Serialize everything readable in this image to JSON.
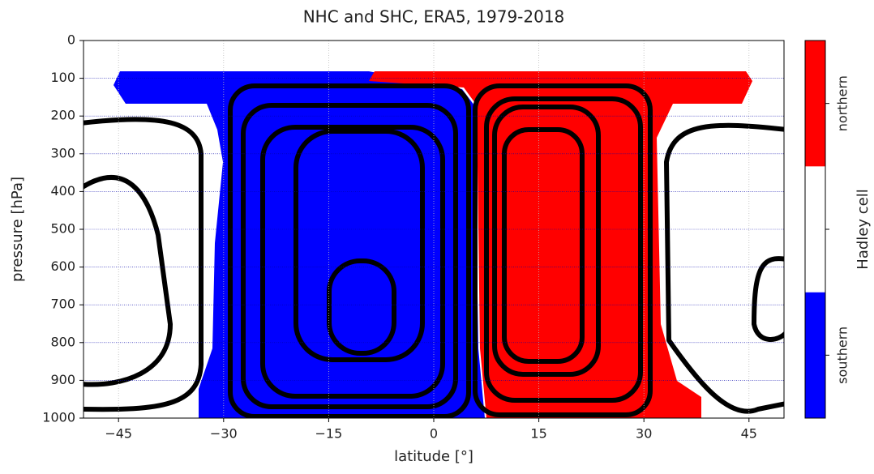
{
  "chart_data": {
    "type": "contour",
    "title": "NHC and SHC, ERA5, 1979-2018",
    "x_label": "latitude [°]",
    "y_label": "pressure [hPa]",
    "xlim": [
      -50,
      50
    ],
    "xticks": [
      {
        "value": -45,
        "label": "−45"
      },
      {
        "value": -30,
        "label": "−30"
      },
      {
        "value": -15,
        "label": "−15"
      },
      0,
      15,
      30,
      45
    ],
    "ylim": [
      1000,
      0
    ],
    "yticks": [
      0,
      100,
      200,
      300,
      400,
      500,
      600,
      700,
      800,
      900,
      1000
    ],
    "grid": true,
    "colorbar": {
      "label": "Hadley cell",
      "categories": [
        "southern",
        null,
        "northern"
      ],
      "colors": [
        "#0000ff",
        "#ffffff",
        "#ff0000"
      ]
    }
  }
}
